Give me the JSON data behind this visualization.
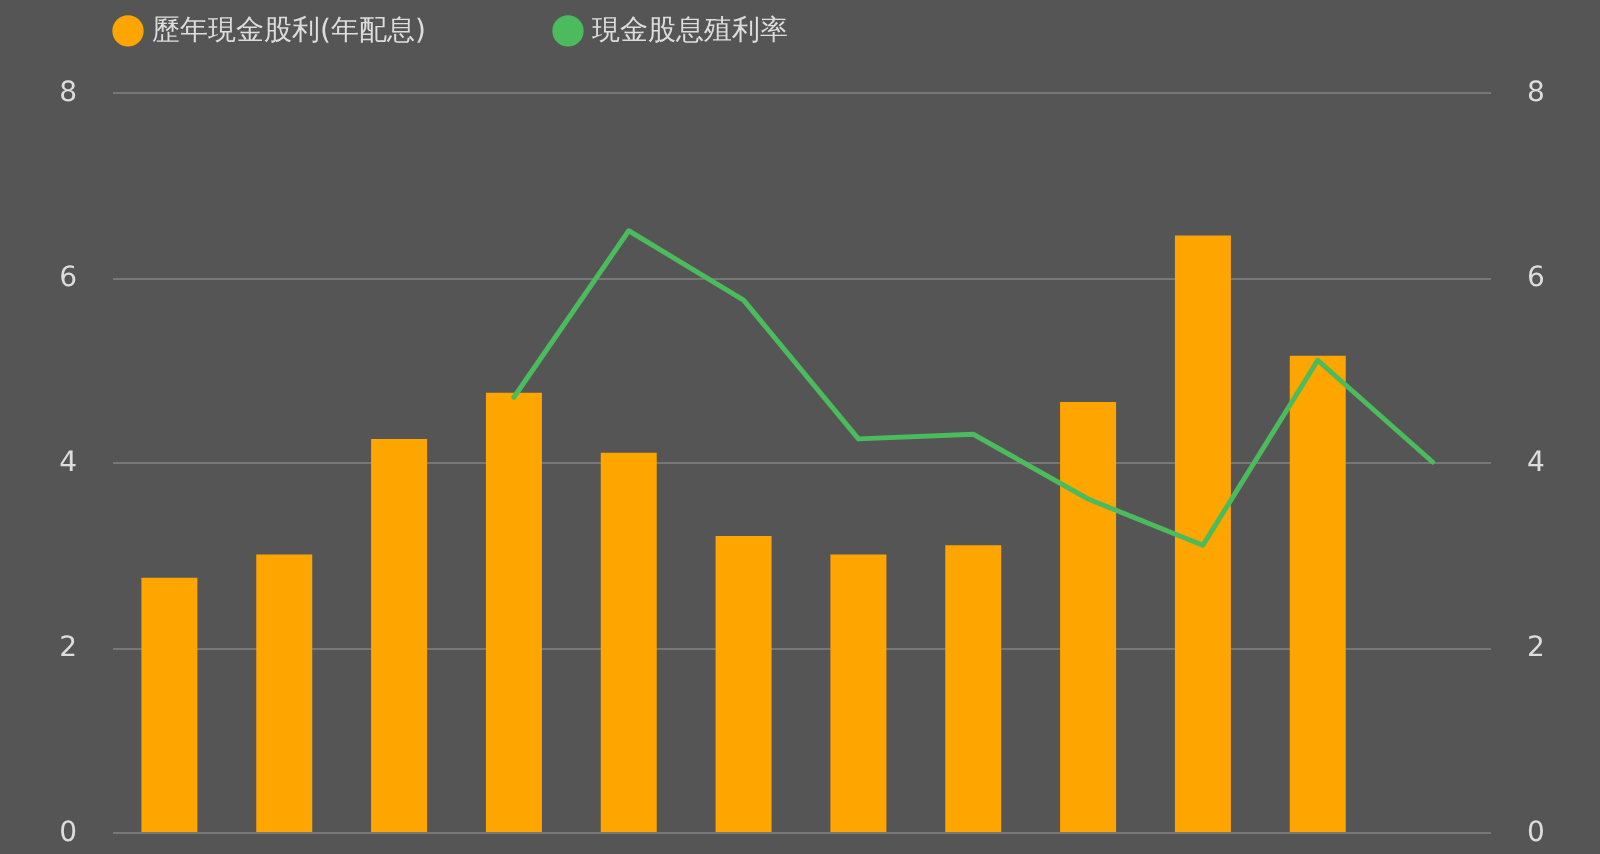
{
  "chart_data": {
    "type": "bar",
    "categories": [
      null,
      null,
      null,
      null,
      null,
      null,
      null,
      null,
      null,
      null,
      null,
      null
    ],
    "series": [
      {
        "name": "歷年現金股利(年配息)",
        "color": "#ffa500",
        "values": [
          2.75,
          3.0,
          4.25,
          4.75,
          4.1,
          3.2,
          3.0,
          3.1,
          4.65,
          6.45,
          5.15,
          null
        ]
      },
      {
        "name": "現金股息殖利率",
        "type": "line",
        "axis": "y2",
        "color": "#4cbb5e",
        "values": [
          null,
          null,
          null,
          4.7,
          6.5,
          5.75,
          4.25,
          4.3,
          3.6,
          3.1,
          5.1,
          4.0
        ]
      }
    ],
    "ylim": [
      0,
      8
    ],
    "yticks": [
      0,
      2,
      4,
      6,
      8
    ],
    "y2lim": [
      0,
      8
    ],
    "y2ticks": [
      0,
      2,
      4,
      6,
      8
    ],
    "grid": true,
    "legend": "top"
  }
}
